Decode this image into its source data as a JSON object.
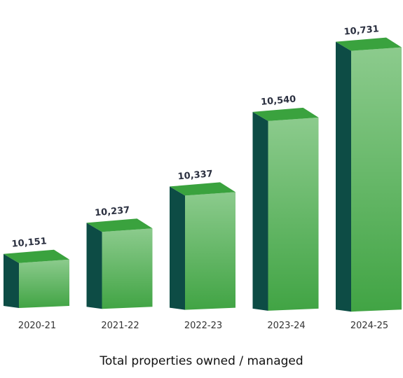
{
  "chart_data": {
    "type": "bar",
    "style": "3d-box",
    "title": "Total properties owned / managed",
    "categories": [
      "2020-21",
      "2021-22",
      "2022-23",
      "2023-24",
      "2024-25"
    ],
    "values": [
      10151,
      10237,
      10337,
      10540,
      10731
    ],
    "value_labels": [
      "10,151",
      "10,237",
      "10,337",
      "10,540",
      "10,731"
    ],
    "xlabel": "",
    "ylabel": "",
    "grid": false,
    "legend": "none",
    "colors": {
      "front_top": "#8ccb8d",
      "front_bottom": "#41a444",
      "top_face": "#3aa23e",
      "side_face": "#0d4c45"
    }
  }
}
